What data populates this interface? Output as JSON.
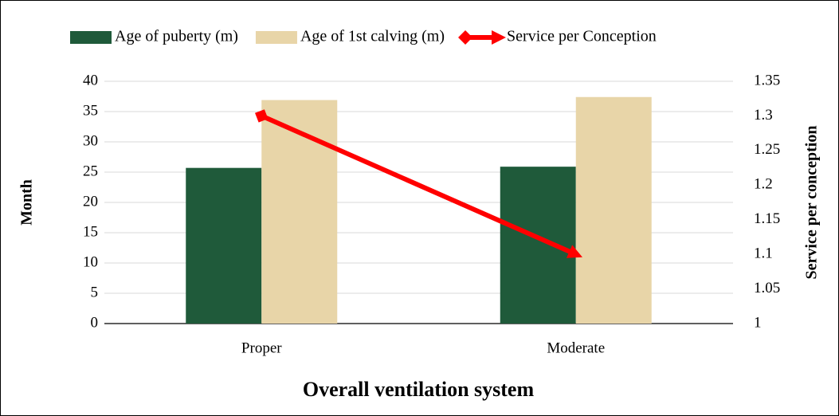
{
  "chart_data": {
    "type": "bar",
    "x_label": "Overall ventilation system",
    "y_label": "Month",
    "y2_label": "Service per conception",
    "categories": [
      "Proper",
      "Moderate"
    ],
    "series": [
      {
        "name": "Age of puberty (m)",
        "color": "#1f5a3a",
        "values": [
          25.7,
          25.9
        ]
      },
      {
        "name": "Age of 1st calving (m)",
        "color": "#e8d5a8",
        "values": [
          36.9,
          37.4
        ]
      },
      {
        "name": "Service per Conception",
        "color": "#ff0000",
        "type": "line",
        "axis": "y2",
        "values": [
          1.3,
          1.1
        ]
      }
    ],
    "ylim": [
      0,
      40
    ],
    "yticks": [
      0,
      5,
      10,
      15,
      20,
      25,
      30,
      35,
      40
    ],
    "y2lim": [
      1,
      1.35
    ],
    "y2ticks": [
      1,
      1.05,
      1.1,
      1.15,
      1.2,
      1.25,
      1.3,
      1.35
    ],
    "grid": true,
    "legend": "top"
  }
}
